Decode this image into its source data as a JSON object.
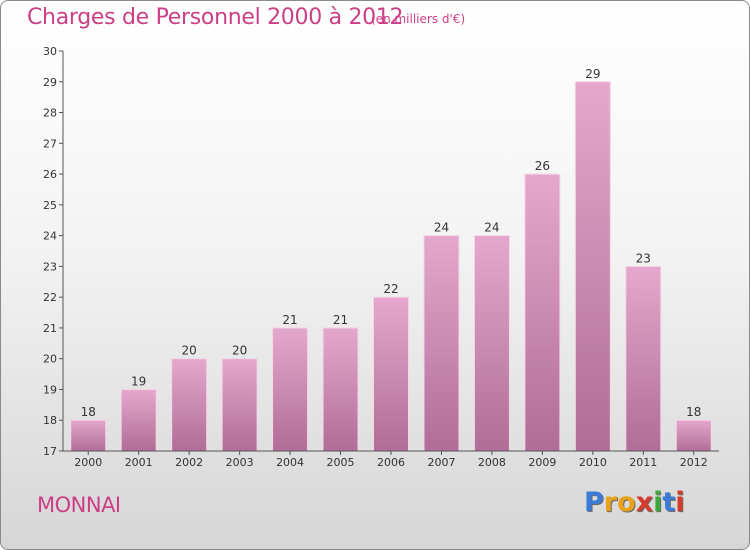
{
  "title": "Charges de Personnel 2000 à 2012",
  "unit": "(en milliers d'€)",
  "commune": "MONNAI",
  "logo": {
    "letters": [
      "P",
      "r",
      "o",
      "x",
      "i",
      "t",
      "i"
    ],
    "colors": [
      "#3b7bd8",
      "#e8a11a",
      "#e8a11a",
      "#d63a2a",
      "#3aa83a",
      "#3b7bd8",
      "#d63a2a"
    ]
  },
  "colors": {
    "bar_top": "#e5a8cc",
    "bar_bottom": "#b06d97",
    "text_accent": "#cc3f86"
  },
  "chart_data": {
    "type": "bar",
    "categories": [
      "2000",
      "2001",
      "2002",
      "2003",
      "2004",
      "2005",
      "2006",
      "2007",
      "2008",
      "2009",
      "2010",
      "2011",
      "2012"
    ],
    "values": [
      18,
      19,
      20,
      20,
      21,
      21,
      22,
      24,
      24,
      26,
      29,
      23,
      18
    ],
    "title": "Charges de Personnel 2000 à 2012",
    "ylim": [
      17,
      30
    ],
    "yticks": [
      17,
      18,
      19,
      20,
      21,
      22,
      23,
      24,
      25,
      26,
      27,
      28,
      29,
      30
    ],
    "grid": false,
    "data_labels": true
  }
}
